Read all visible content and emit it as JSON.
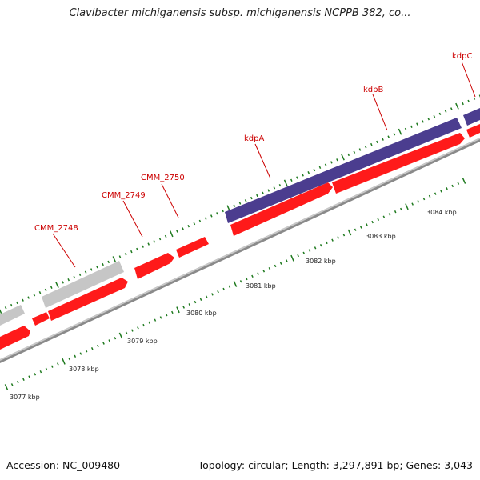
{
  "title": "Clavibacter michiganensis subsp. michiganensis NCPPB 382, co...",
  "footer": {
    "accession": "Accession: NC_009480",
    "stats": "Topology: circular; Length: 3,297,891 bp; Genes: 3,043"
  },
  "colors": {
    "cds": "#ff1a1a",
    "kdp_operon": "#4b3d8f",
    "hypothetical": "#c6c6c6",
    "backbone": "#8a8a8a",
    "ticks": "#1f7a1f",
    "label": "#cc0000"
  },
  "gene_labels": [
    "CMM_2748",
    "CMM_2749",
    "CMM_2750",
    "kdpA",
    "kdpB",
    "kdpC"
  ],
  "kbp_labels": [
    "3077 kbp",
    "3078 kbp",
    "3079 kbp",
    "3080 kbp",
    "3081 kbp",
    "3082 kbp",
    "3083 kbp",
    "3084 kbp"
  ]
}
